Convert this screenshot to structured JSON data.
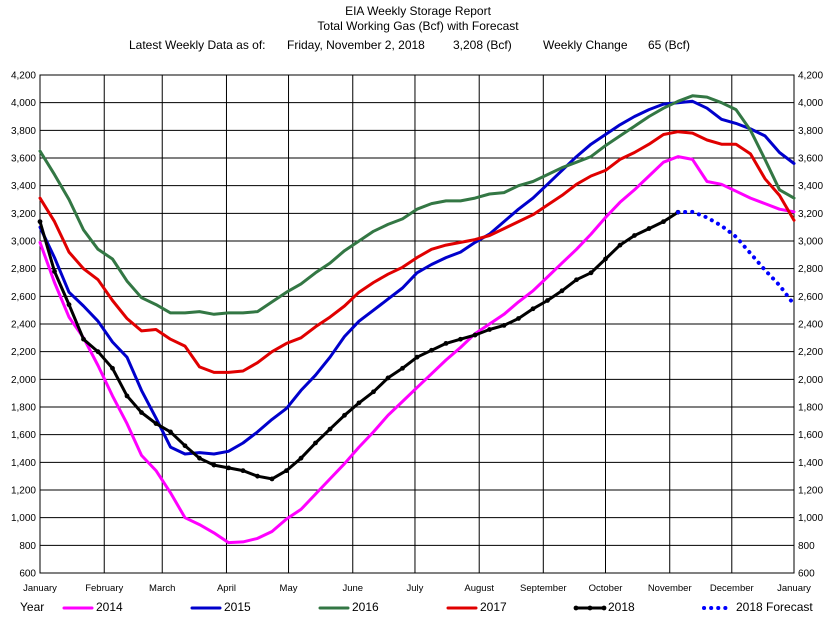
{
  "header": {
    "title": "EIA Weekly Storage Report",
    "subtitle": "Total Working Gas (Bcf) with Forecast",
    "latest_label": "Latest Weekly Data as of:",
    "latest_date": "Friday, November 2, 2018",
    "latest_value": "3,208 (Bcf)",
    "change_label": "Weekly Change",
    "change_value": "65 (Bcf)"
  },
  "legend": {
    "title": "Year",
    "entries": [
      "2014",
      "2015",
      "2016",
      "2017",
      "2018",
      "2018 Forecast"
    ]
  },
  "chart_data": {
    "type": "line",
    "title": "EIA Weekly Storage Report",
    "subtitle": "Total Working Gas (Bcf) with Forecast",
    "ylim": [
      600,
      4200
    ],
    "yticks": [
      600,
      800,
      1000,
      1200,
      1400,
      1600,
      1800,
      2000,
      2200,
      2400,
      2600,
      2800,
      3000,
      3200,
      3400,
      3600,
      3800,
      4000,
      4200
    ],
    "ytick_labels": [
      "600",
      "800",
      "1,000",
      "1,200",
      "1,400",
      "1,600",
      "1,800",
      "2,000",
      "2,200",
      "2,400",
      "2,600",
      "2,800",
      "3,000",
      "3,200",
      "3,400",
      "3,600",
      "3,800",
      "4,000",
      "4,200"
    ],
    "xlim": [
      1,
      53
    ],
    "xtick_weeks": [
      1,
      5.43,
      9.43,
      13.86,
      18.14,
      22.57,
      26.86,
      31.29,
      35.71,
      40,
      44.43,
      48.71,
      53.14
    ],
    "xtick_labels": [
      "January",
      "February",
      "March",
      "April",
      "May",
      "June",
      "July",
      "August",
      "September",
      "October",
      "November",
      "December",
      "January"
    ],
    "grid": true,
    "legend_position": "bottom",
    "series": [
      {
        "name": "2014",
        "color": "#ff00ff",
        "style": "solid",
        "x": [
          1,
          2,
          3,
          4,
          5,
          6,
          7,
          8,
          9,
          10,
          11,
          12,
          13,
          14,
          15,
          16,
          17,
          18,
          19,
          20,
          21,
          22,
          23,
          24,
          25,
          26,
          27,
          28,
          29,
          30,
          31,
          32,
          33,
          34,
          35,
          36,
          37,
          38,
          39,
          40,
          41,
          42,
          43,
          44,
          45,
          46,
          47,
          48,
          49,
          50,
          51,
          52,
          53
        ],
        "y": [
          2990,
          2700,
          2450,
          2300,
          2100,
          1880,
          1680,
          1450,
          1340,
          1180,
          1000,
          950,
          890,
          820,
          825,
          850,
          900,
          990,
          1060,
          1170,
          1280,
          1390,
          1510,
          1620,
          1740,
          1840,
          1940,
          2040,
          2140,
          2230,
          2330,
          2400,
          2470,
          2560,
          2640,
          2740,
          2840,
          2940,
          3050,
          3170,
          3280,
          3370,
          3470,
          3570,
          3610,
          3590,
          3430,
          3410,
          3360,
          3310,
          3270,
          3230,
          3210
        ]
      },
      {
        "name": "2015",
        "color": "#0000cc",
        "style": "solid",
        "x": [
          1,
          2,
          3,
          4,
          5,
          6,
          7,
          8,
          9,
          10,
          11,
          12,
          13,
          14,
          15,
          16,
          17,
          18,
          19,
          20,
          21,
          22,
          23,
          24,
          25,
          26,
          27,
          28,
          29,
          30,
          31,
          32,
          33,
          34,
          35,
          36,
          37,
          38,
          39,
          40,
          41,
          42,
          43,
          44,
          45,
          46,
          47,
          48,
          49,
          50,
          51,
          52,
          53
        ],
        "y": [
          3100,
          2880,
          2630,
          2530,
          2420,
          2270,
          2160,
          1920,
          1720,
          1510,
          1460,
          1470,
          1460,
          1480,
          1540,
          1620,
          1710,
          1790,
          1920,
          2030,
          2160,
          2310,
          2420,
          2500,
          2580,
          2660,
          2770,
          2830,
          2880,
          2920,
          2990,
          3050,
          3140,
          3230,
          3310,
          3410,
          3510,
          3610,
          3700,
          3770,
          3840,
          3900,
          3950,
          3990,
          4000,
          4010,
          3960,
          3880,
          3850,
          3810,
          3760,
          3640,
          3560
        ]
      },
      {
        "name": "2016",
        "color": "#337744",
        "style": "solid",
        "x": [
          1,
          2,
          3,
          4,
          5,
          6,
          7,
          8,
          9,
          10,
          11,
          12,
          13,
          14,
          15,
          16,
          17,
          18,
          19,
          20,
          21,
          22,
          23,
          24,
          25,
          26,
          27,
          28,
          29,
          30,
          31,
          32,
          33,
          34,
          35,
          36,
          37,
          38,
          39,
          40,
          41,
          42,
          43,
          44,
          45,
          46,
          47,
          48,
          49,
          50,
          51,
          52,
          53
        ],
        "y": [
          3650,
          3480,
          3300,
          3080,
          2940,
          2870,
          2710,
          2590,
          2540,
          2480,
          2480,
          2490,
          2470,
          2480,
          2480,
          2490,
          2560,
          2630,
          2690,
          2770,
          2840,
          2930,
          3000,
          3070,
          3120,
          3160,
          3230,
          3270,
          3290,
          3290,
          3310,
          3340,
          3350,
          3400,
          3430,
          3480,
          3530,
          3570,
          3610,
          3690,
          3760,
          3830,
          3900,
          3960,
          4010,
          4050,
          4040,
          4000,
          3950,
          3800,
          3590,
          3370,
          3310
        ]
      },
      {
        "name": "2017",
        "color": "#e00000",
        "style": "solid",
        "x": [
          1,
          2,
          3,
          4,
          5,
          6,
          7,
          8,
          9,
          10,
          11,
          12,
          13,
          14,
          15,
          16,
          17,
          18,
          19,
          20,
          21,
          22,
          23,
          24,
          25,
          26,
          27,
          28,
          29,
          30,
          31,
          32,
          33,
          34,
          35,
          36,
          37,
          38,
          39,
          40,
          41,
          42,
          43,
          44,
          45,
          46,
          47,
          48,
          49,
          50,
          51,
          52,
          53
        ],
        "y": [
          3310,
          3140,
          2920,
          2800,
          2720,
          2570,
          2440,
          2350,
          2360,
          2290,
          2240,
          2090,
          2050,
          2050,
          2060,
          2120,
          2200,
          2260,
          2300,
          2380,
          2450,
          2530,
          2630,
          2700,
          2760,
          2810,
          2880,
          2940,
          2970,
          2990,
          3010,
          3040,
          3090,
          3140,
          3190,
          3260,
          3330,
          3410,
          3470,
          3510,
          3590,
          3640,
          3700,
          3770,
          3790,
          3780,
          3730,
          3700,
          3700,
          3630,
          3450,
          3330,
          3150
        ]
      },
      {
        "name": "2018",
        "color": "#000000",
        "style": "solid-markers",
        "x": [
          1,
          2,
          3,
          4,
          5,
          6,
          7,
          8,
          9,
          10,
          11,
          12,
          13,
          14,
          15,
          16,
          17,
          18,
          19,
          20,
          21,
          22,
          23,
          24,
          25,
          26,
          27,
          28,
          29,
          30,
          31,
          32,
          33,
          34,
          35,
          36,
          37,
          38,
          39,
          40,
          41,
          42,
          43,
          44,
          45
        ],
        "y": [
          3140,
          2780,
          2540,
          2290,
          2200,
          2080,
          1880,
          1760,
          1680,
          1620,
          1520,
          1430,
          1380,
          1360,
          1340,
          1300,
          1280,
          1340,
          1430,
          1540,
          1640,
          1740,
          1830,
          1910,
          2010,
          2080,
          2160,
          2210,
          2260,
          2290,
          2320,
          2360,
          2390,
          2440,
          2510,
          2570,
          2640,
          2720,
          2770,
          2870,
          2970,
          3040,
          3090,
          3140,
          3208
        ]
      },
      {
        "name": "2018 Forecast",
        "color": "#0000ff",
        "style": "dotted",
        "x": [
          45,
          46,
          47,
          48,
          49,
          50,
          51,
          52,
          53
        ],
        "y": [
          3208,
          3210,
          3170,
          3110,
          3030,
          2910,
          2790,
          2680,
          2540
        ]
      }
    ]
  }
}
